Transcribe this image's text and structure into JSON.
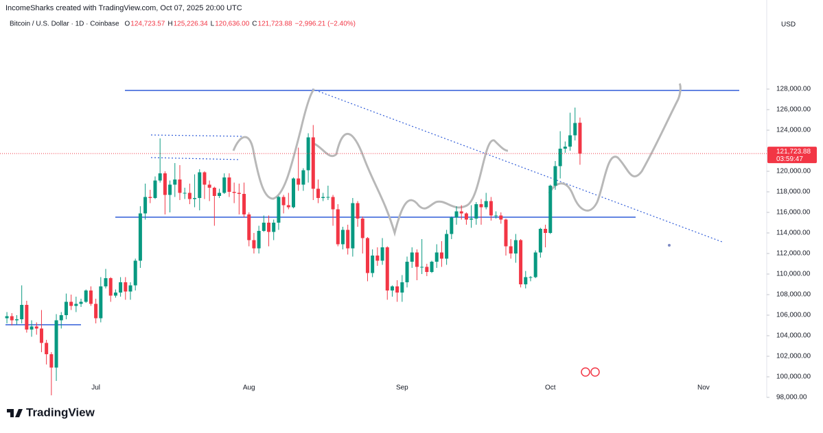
{
  "chart_data": {
    "type": "candlestick",
    "attribution": "IncomeSharks created with TradingView.com, Oct 07, 2025 20:00 UTC",
    "title": "Bitcoin / U.S. Dollar · 1D · Coinbase",
    "ohlc_legend": [
      {
        "key": "O",
        "text": "124,723.57"
      },
      {
        "key": "H",
        "text": "125,226.34"
      },
      {
        "key": "L",
        "text": "120,636.00"
      },
      {
        "key": "C",
        "text": "121,723.88"
      }
    ],
    "change": "−2,996.21 (−2.40%)",
    "currency": "USD",
    "last_price": {
      "value": 121723.88,
      "label": "121,723.88"
    },
    "countdown": "03:59:47",
    "brand": "TradingView",
    "up_color": "#089981",
    "down_color": "#f23645",
    "open": [
      105700,
      105900,
      105500,
      105600,
      107000,
      104600,
      104900,
      104700,
      103300,
      102200,
      100900,
      105500,
      106000,
      107300,
      106900,
      107100,
      107300,
      108400,
      107100,
      105700,
      108800,
      109600,
      107900,
      108200,
      109200,
      108300,
      108900,
      111300,
      115900,
      117500,
      117400,
      119100,
      119800,
      117700,
      118700,
      119200,
      117900,
      117900,
      117300,
      117400,
      119900,
      118700,
      118400,
      117600,
      117900,
      119400,
      118000,
      117900,
      117800,
      115800,
      113300,
      112500,
      114200,
      115000,
      114100,
      115000,
      117500,
      116700,
      116500,
      119300,
      118700,
      120100,
      123300,
      118300,
      117400,
      117500,
      117500,
      116300,
      112900,
      114300,
      112500,
      116900,
      115400,
      113500,
      110100,
      111800,
      111300,
      112600,
      108400,
      108800,
      108200,
      109200,
      111200,
      112100,
      110700,
      110700,
      110200,
      111200,
      112100,
      111500,
      113900,
      115500,
      116100,
      115900,
      115300,
      115400,
      116800,
      116500,
      117100,
      115700,
      115700,
      115300,
      112700,
      112000,
      113300,
      109000,
      109700,
      109700,
      112100,
      114400,
      114000,
      118600,
      120500,
      122200,
      122400,
      123500,
      124723.57
    ],
    "high": [
      106300,
      106200,
      106000,
      108900,
      107400,
      105500,
      105300,
      106500,
      103600,
      102400,
      106100,
      106300,
      108100,
      108000,
      107800,
      107600,
      108500,
      108800,
      107600,
      109700,
      110500,
      109700,
      108500,
      109700,
      109700,
      109200,
      111500,
      116600,
      118800,
      118200,
      119500,
      123200,
      120000,
      119100,
      120800,
      120600,
      118400,
      118800,
      119700,
      120200,
      120000,
      119100,
      118500,
      118300,
      119800,
      119800,
      118900,
      118800,
      118900,
      116000,
      114000,
      114700,
      115700,
      115700,
      115300,
      117600,
      117700,
      117900,
      119400,
      122300,
      120300,
      123700,
      124500,
      119200,
      117900,
      118600,
      117700,
      116800,
      114600,
      114800,
      117400,
      117100,
      115600,
      113600,
      112400,
      112600,
      113500,
      112700,
      108900,
      109400,
      109900,
      111700,
      112600,
      112400,
      113400,
      111000,
      111300,
      112900,
      113200,
      114300,
      115600,
      116600,
      116700,
      116000,
      116700,
      117000,
      117300,
      117900,
      117500,
      116100,
      116000,
      115400,
      113400,
      113900,
      113400,
      110300,
      109800,
      112300,
      114500,
      114800,
      118700,
      121000,
      123900,
      122900,
      125700,
      126200,
      125226.34
    ],
    "low": [
      105200,
      105000,
      105100,
      105200,
      104300,
      103900,
      104100,
      102400,
      101200,
      98200,
      99600,
      104700,
      105600,
      106500,
      106300,
      106800,
      107200,
      106900,
      105200,
      105300,
      108600,
      107300,
      107700,
      107800,
      107500,
      107500,
      108400,
      110600,
      115300,
      116900,
      117300,
      118900,
      115800,
      116000,
      117500,
      117200,
      117300,
      116800,
      116500,
      116200,
      117300,
      117100,
      114700,
      117400,
      117800,
      117500,
      116900,
      115800,
      115500,
      112700,
      112000,
      112000,
      114100,
      112700,
      113300,
      114300,
      115900,
      116300,
      116400,
      118100,
      118100,
      118900,
      117200,
      116900,
      117100,
      117200,
      114700,
      112700,
      112400,
      111900,
      111700,
      114600,
      112000,
      109300,
      109700,
      110800,
      110900,
      107500,
      107800,
      107300,
      107300,
      108700,
      110600,
      109400,
      110000,
      109800,
      110100,
      110600,
      110700,
      110900,
      113400,
      114800,
      115300,
      114800,
      114500,
      114800,
      114800,
      116300,
      115200,
      115400,
      114900,
      111800,
      111500,
      111100,
      108700,
      108600,
      109300,
      109600,
      111600,
      112600,
      113900,
      118200,
      119300,
      121800,
      122000,
      123000,
      120636
    ],
    "close": [
      105900,
      105500,
      105600,
      107000,
      104600,
      104900,
      104700,
      103300,
      102200,
      100900,
      105500,
      106000,
      107300,
      106900,
      107100,
      107300,
      108400,
      107100,
      105700,
      108800,
      109600,
      107900,
      108200,
      109200,
      108300,
      108900,
      111300,
      115900,
      117500,
      117400,
      119100,
      119800,
      117700,
      118700,
      119200,
      117900,
      117900,
      117300,
      117400,
      119900,
      118700,
      118400,
      117600,
      117900,
      119400,
      118000,
      117900,
      117800,
      115800,
      113300,
      112500,
      114200,
      115000,
      114100,
      115000,
      117500,
      116700,
      116500,
      119300,
      118700,
      120100,
      123300,
      118300,
      117400,
      117500,
      117500,
      116300,
      112900,
      114300,
      112500,
      116900,
      115400,
      113500,
      110100,
      111800,
      111300,
      112600,
      108400,
      108800,
      108200,
      109200,
      111200,
      112100,
      110700,
      110700,
      110200,
      111200,
      112100,
      111500,
      113900,
      115500,
      116100,
      115900,
      115300,
      115400,
      116800,
      116500,
      117100,
      115700,
      115700,
      115300,
      112700,
      112000,
      113300,
      109000,
      109700,
      109700,
      112100,
      114400,
      114000,
      118600,
      120500,
      122200,
      122400,
      123500,
      124700,
      121723.88
    ],
    "xlim": [
      -1.4,
      153.8
    ],
    "xticks": [
      {
        "value": 18,
        "label": "Jul"
      },
      {
        "value": 49,
        "label": "Aug"
      },
      {
        "value": 80,
        "label": "Sep"
      },
      {
        "value": 110,
        "label": "Oct"
      },
      {
        "value": 141,
        "label": "Nov"
      }
    ],
    "ylim": [
      96666.67,
      136666.67
    ],
    "yticks": [
      {
        "value": 98000,
        "label": "98,000.00"
      },
      {
        "value": 100000,
        "label": "100,000.00"
      },
      {
        "value": 102000,
        "label": "102,000.00"
      },
      {
        "value": 104000,
        "label": "104,000.00"
      },
      {
        "value": 106000,
        "label": "106,000.00"
      },
      {
        "value": 108000,
        "label": "108,000.00"
      },
      {
        "value": 110000,
        "label": "110,000.00"
      },
      {
        "value": 112000,
        "label": "112,000.00"
      },
      {
        "value": 114000,
        "label": "114,000.00"
      },
      {
        "value": 116000,
        "label": "116,000.00"
      },
      {
        "value": 118000,
        "label": "118,000.00"
      },
      {
        "value": 120000,
        "label": "120,000.00"
      },
      {
        "value": 122000,
        "label": "122,000.00"
      },
      {
        "value": 124000,
        "label": "124,000.00"
      },
      {
        "value": 126000,
        "label": "126,000.00"
      },
      {
        "value": 128000,
        "label": "128,000.00"
      }
    ],
    "grid": false
  }
}
